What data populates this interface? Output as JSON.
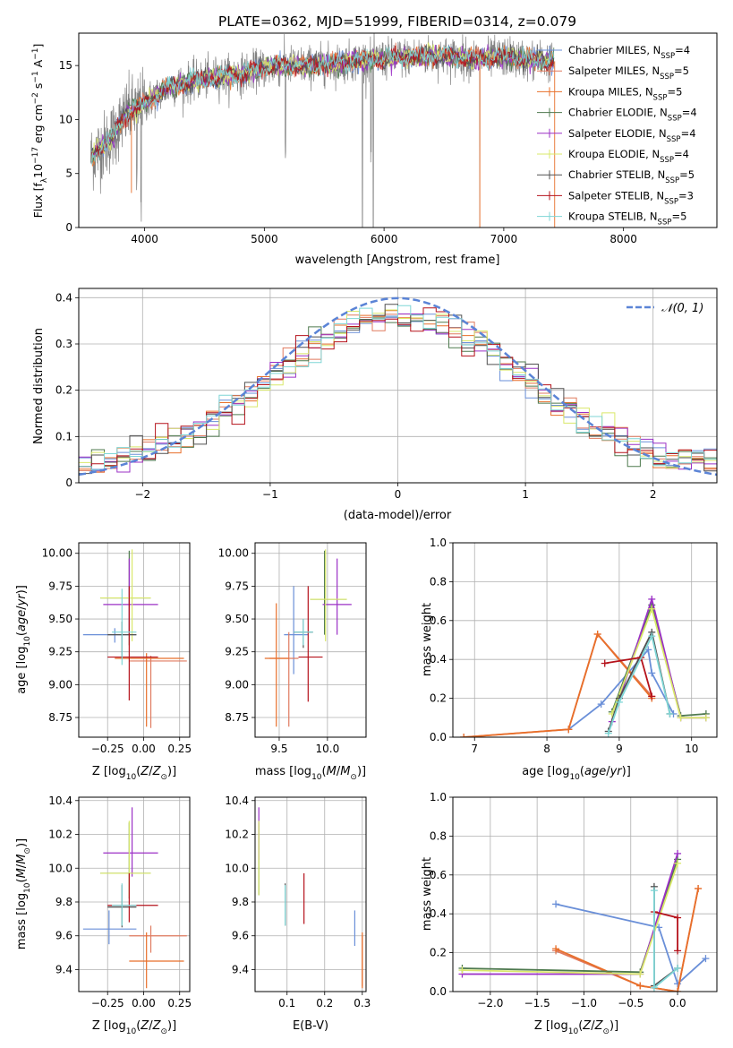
{
  "figure": {
    "title": "PLATE=0362, MJD=51999, FIBERID=0314, z=0.079"
  },
  "colors": {
    "models": [
      "#6a8fd8",
      "#e07a5f",
      "#e86f2a",
      "#4f7a4f",
      "#9b30c6",
      "#d9e86a",
      "#505050",
      "#b5121b",
      "#7fd6d6"
    ],
    "gauss": "#5b84d6",
    "data_spectrum": "#808080",
    "grid": "#b0b0b0"
  },
  "chart_data": [
    {
      "id": "spectrum",
      "type": "line",
      "title": "PLATE=0362, MJD=51999, FIBERID=0314, z=0.079",
      "xlabel": "wavelength [Angstrom, rest frame]",
      "ylabel": "Flux [f_λ10^-17 erg cm^-2 s^-1 A^-1]",
      "xlim": [
        3450,
        8780
      ],
      "ylim": [
        0,
        18
      ],
      "xticks": [
        4000,
        5000,
        6000,
        7000,
        8000
      ],
      "yticks": [
        0,
        5,
        10,
        15
      ],
      "grid": false,
      "legend_position": "top-right",
      "continuum": {
        "x": [
          3550,
          3700,
          3850,
          4000,
          4200,
          4400,
          4600,
          4800,
          5000,
          5200,
          5400,
          5600,
          5800,
          6000,
          6200,
          6400,
          6600,
          6800,
          7000,
          7200,
          7400
        ],
        "y": [
          6.5,
          8.0,
          10.5,
          11.5,
          13.0,
          13.5,
          14.0,
          14.2,
          14.8,
          15.0,
          15.0,
          15.2,
          15.5,
          15.6,
          15.8,
          15.9,
          15.8,
          15.6,
          15.8,
          15.5,
          15.4
        ]
      },
      "series": [
        {
          "name": "Chabrier MILES, N_SSP=4",
          "label_main": "Chabrier MILES, N",
          "label_sub": "SSP",
          "label_tail": "=4",
          "color_index": 0
        },
        {
          "name": "Salpeter MILES, N_SSP=5",
          "label_main": "Salpeter MILES, N",
          "label_sub": "SSP",
          "label_tail": "=5",
          "color_index": 1
        },
        {
          "name": "Kroupa MILES, N_SSP=5",
          "label_main": "Kroupa MILES, N",
          "label_sub": "SSP",
          "label_tail": "=5",
          "color_index": 2
        },
        {
          "name": "Chabrier ELODIE, N_SSP=4",
          "label_main": "Chabrier ELODIE, N",
          "label_sub": "SSP",
          "label_tail": "=4",
          "color_index": 3
        },
        {
          "name": "Salpeter ELODIE, N_SSP=4",
          "label_main": "Salpeter ELODIE, N",
          "label_sub": "SSP",
          "label_tail": "=4",
          "color_index": 4
        },
        {
          "name": "Kroupa ELODIE, N_SSP=4",
          "label_main": "Kroupa ELODIE, N",
          "label_sub": "SSP",
          "label_tail": "=4",
          "color_index": 5
        },
        {
          "name": "Chabrier STELIB, N_SSP=5",
          "label_main": "Chabrier STELIB, N",
          "label_sub": "SSP",
          "label_tail": "=5",
          "color_index": 6
        },
        {
          "name": "Salpeter STELIB, N_SSP=3",
          "label_main": "Salpeter STELIB, N",
          "label_sub": "SSP",
          "label_tail": "=3",
          "color_index": 7
        },
        {
          "name": "Kroupa STELIB, N_SSP=5",
          "label_main": "Kroupa STELIB, N",
          "label_sub": "SSP",
          "label_tail": "=5",
          "color_index": 8
        }
      ]
    },
    {
      "id": "residuals",
      "type": "histogram",
      "xlabel": "(data-model)/error",
      "ylabel": "Normed distribution",
      "xlim": [
        -2.5,
        2.5
      ],
      "ylim": [
        0,
        0.42
      ],
      "xticks": [
        -2,
        -1,
        0,
        1,
        2
      ],
      "yticks": [
        0.0,
        0.1,
        0.2,
        0.3,
        0.4
      ],
      "grid": true,
      "legend_position": "top-right",
      "legend_label": "𝒩(0, 1)",
      "bin_width": 0.1
    },
    {
      "id": "age_vs_Z",
      "type": "errorbar",
      "xlabel": "Z [log10(Z/Z⊙)]",
      "ylabel": "age [log10(age/yr)]",
      "xlim": [
        -0.45,
        0.32
      ],
      "ylim": [
        8.6,
        10.08
      ],
      "xticks": [
        -0.25,
        0.0,
        0.25
      ],
      "xticklabels": [
        "−0.25",
        "0.00",
        "0.25"
      ],
      "yticks": [
        8.75,
        9.0,
        9.25,
        9.5,
        9.75,
        10.0
      ],
      "yticklabels": [
        "8.75",
        "9.00",
        "9.25",
        "9.50",
        "9.75",
        "10.00"
      ],
      "grid": true,
      "points": [
        {
          "c": 0,
          "x": -0.2,
          "y": 9.38,
          "xe": [
            -0.42,
            -0.05
          ],
          "ye": [
            9.32,
            9.43
          ]
        },
        {
          "c": 1,
          "x": 0.05,
          "y": 9.18,
          "xe": [
            -0.1,
            0.3
          ],
          "ye": [
            8.67,
            9.22
          ]
        },
        {
          "c": 2,
          "x": 0.02,
          "y": 9.2,
          "xe": [
            -0.2,
            0.28
          ],
          "ye": [
            8.68,
            9.24
          ]
        },
        {
          "c": 3,
          "x": -0.1,
          "y": 9.66,
          "xe": [
            -0.3,
            0.05
          ],
          "ye": [
            9.3,
            10.02
          ]
        },
        {
          "c": 4,
          "x": -0.1,
          "y": 9.61,
          "xe": [
            -0.28,
            0.1
          ],
          "ye": [
            9.38,
            9.96
          ]
        },
        {
          "c": 5,
          "x": -0.08,
          "y": 9.66,
          "xe": [
            -0.3,
            0.05
          ],
          "ye": [
            9.33,
            10.03
          ]
        },
        {
          "c": 6,
          "x": -0.15,
          "y": 9.38,
          "xe": [
            -0.25,
            -0.05
          ],
          "ye": [
            9.2,
            9.48
          ]
        },
        {
          "c": 7,
          "x": -0.1,
          "y": 9.21,
          "xe": [
            -0.25,
            0.1
          ],
          "ye": [
            8.88,
            9.75
          ]
        },
        {
          "c": 8,
          "x": -0.15,
          "y": 9.4,
          "xe": [
            -0.22,
            -0.05
          ],
          "ye": [
            9.15,
            9.73
          ]
        }
      ]
    },
    {
      "id": "age_vs_mass",
      "type": "errorbar",
      "xlabel": "mass [log10(M/M⊙)]",
      "ylabel": "",
      "xlim": [
        9.25,
        10.4
      ],
      "ylim": [
        8.6,
        10.08
      ],
      "xticks": [
        9.5,
        10.0
      ],
      "xticklabels": [
        "9.5",
        "10.0"
      ],
      "yticks": [
        8.75,
        9.0,
        9.25,
        9.5,
        9.75,
        10.0
      ],
      "yticklabels": [
        "8.75",
        "9.00",
        "9.25",
        "9.50",
        "9.75",
        "10.00"
      ],
      "grid": true,
      "points": [
        {
          "c": 0,
          "x": 9.65,
          "y": 9.38,
          "xe": [
            9.55,
            9.8
          ],
          "ye": [
            9.08,
            9.75
          ]
        },
        {
          "c": 1,
          "x": 9.6,
          "y": 9.2,
          "xe": [
            9.4,
            9.7
          ],
          "ye": [
            8.68,
            9.4
          ]
        },
        {
          "c": 2,
          "x": 9.47,
          "y": 9.2,
          "xe": [
            9.35,
            9.6
          ],
          "ye": [
            8.68,
            9.62
          ]
        },
        {
          "c": 3,
          "x": 9.97,
          "y": 9.65,
          "xe": [
            9.82,
            10.2
          ],
          "ye": [
            9.38,
            10.02
          ]
        },
        {
          "c": 4,
          "x": 10.1,
          "y": 9.61,
          "xe": [
            9.95,
            10.25
          ],
          "ye": [
            9.38,
            9.96
          ]
        },
        {
          "c": 5,
          "x": 9.98,
          "y": 9.65,
          "xe": [
            9.82,
            10.2
          ],
          "ye": [
            9.33,
            10.03
          ]
        },
        {
          "c": 6,
          "x": 9.75,
          "y": 9.4,
          "xe": [
            9.65,
            9.85
          ],
          "ye": [
            9.28,
            9.5
          ]
        },
        {
          "c": 7,
          "x": 9.8,
          "y": 9.21,
          "xe": [
            9.7,
            9.95
          ],
          "ye": [
            8.87,
            9.75
          ]
        },
        {
          "c": 8,
          "x": 9.75,
          "y": 9.4,
          "xe": [
            9.65,
            9.85
          ],
          "ye": [
            9.3,
            9.5
          ]
        }
      ]
    },
    {
      "id": "mass_weight_vs_age",
      "type": "line",
      "xlabel": "age [log10(age/yr)]",
      "ylabel": "mass weight",
      "xlim": [
        6.7,
        10.35
      ],
      "ylim": [
        0,
        1.0
      ],
      "xticks": [
        7,
        8,
        9,
        10
      ],
      "xticklabels": [
        "7",
        "8",
        "9",
        "10"
      ],
      "yticks": [
        0.0,
        0.2,
        0.4,
        0.6,
        0.8,
        1.0
      ],
      "yticklabels": [
        "0.0",
        "0.2",
        "0.4",
        "0.6",
        "0.8",
        "1.0"
      ],
      "grid": true,
      "series": [
        {
          "c": 0,
          "x": [
            8.3,
            8.75,
            9.4,
            9.45,
            9.75
          ],
          "y": [
            0.04,
            0.17,
            0.45,
            0.33,
            0.12
          ]
        },
        {
          "c": 1,
          "x": [
            6.85,
            8.3,
            8.7,
            9.45
          ],
          "y": [
            0.0,
            0.04,
            0.53,
            0.21
          ]
        },
        {
          "c": 2,
          "x": [
            6.85,
            8.3,
            8.7,
            9.45
          ],
          "y": [
            0.0,
            0.04,
            0.53,
            0.2
          ]
        },
        {
          "c": 3,
          "x": [
            8.9,
            9.45,
            9.85,
            10.2
          ],
          "y": [
            0.13,
            0.68,
            0.11,
            0.12
          ]
        },
        {
          "c": 4,
          "x": [
            8.9,
            9.45,
            9.85,
            10.2
          ],
          "y": [
            0.08,
            0.71,
            0.1,
            0.1
          ]
        },
        {
          "c": 5,
          "x": [
            8.9,
            9.45,
            9.85,
            10.2
          ],
          "y": [
            0.12,
            0.66,
            0.1,
            0.1
          ]
        },
        {
          "c": 6,
          "x": [
            8.85,
            9.0,
            9.45,
            9.7
          ],
          "y": [
            0.03,
            0.2,
            0.54,
            0.12
          ]
        },
        {
          "c": 7,
          "x": [
            8.8,
            9.3,
            9.45
          ],
          "y": [
            0.38,
            0.41,
            0.21
          ]
        },
        {
          "c": 8,
          "x": [
            8.85,
            9.0,
            9.45,
            9.7
          ],
          "y": [
            0.02,
            0.18,
            0.52,
            0.12
          ]
        }
      ]
    },
    {
      "id": "mass_vs_Z",
      "type": "errorbar",
      "xlabel": "Z [log10(Z/Z⊙)]",
      "ylabel": "mass [log10(M/M⊙)]",
      "xlim": [
        -0.45,
        0.32
      ],
      "ylim": [
        9.27,
        10.42
      ],
      "xticks": [
        -0.25,
        0.0,
        0.25
      ],
      "xticklabels": [
        "−0.25",
        "0.00",
        "0.25"
      ],
      "yticks": [
        9.4,
        9.6,
        9.8,
        10.0,
        10.2,
        10.4
      ],
      "yticklabels": [
        "9.4",
        "9.6",
        "9.8",
        "10.0",
        "10.2",
        "10.4"
      ],
      "grid": true,
      "points": [
        {
          "c": 0,
          "x": -0.24,
          "y": 9.64,
          "xe": [
            -0.42,
            -0.05
          ],
          "ye": [
            9.55,
            9.75
          ]
        },
        {
          "c": 1,
          "x": 0.05,
          "y": 9.6,
          "xe": [
            -0.1,
            0.3
          ],
          "ye": [
            9.5,
            9.66
          ]
        },
        {
          "c": 2,
          "x": 0.02,
          "y": 9.45,
          "xe": [
            -0.1,
            0.28
          ],
          "ye": [
            9.29,
            9.62
          ]
        },
        {
          "c": 3,
          "x": -0.1,
          "y": 9.97,
          "xe": [
            -0.3,
            0.05
          ],
          "ye": [
            9.82,
            10.27
          ]
        },
        {
          "c": 4,
          "x": -0.08,
          "y": 10.09,
          "xe": [
            -0.28,
            0.1
          ],
          "ye": [
            9.95,
            10.36
          ]
        },
        {
          "c": 5,
          "x": -0.1,
          "y": 9.97,
          "xe": [
            -0.3,
            0.05
          ],
          "ye": [
            9.83,
            10.28
          ]
        },
        {
          "c": 6,
          "x": -0.15,
          "y": 9.77,
          "xe": [
            -0.25,
            -0.05
          ],
          "ye": [
            9.65,
            9.9
          ]
        },
        {
          "c": 7,
          "x": -0.1,
          "y": 9.78,
          "xe": [
            -0.25,
            0.1
          ],
          "ye": [
            9.68,
            9.97
          ]
        },
        {
          "c": 8,
          "x": -0.15,
          "y": 9.78,
          "xe": [
            -0.22,
            -0.05
          ],
          "ye": [
            9.66,
            9.91
          ]
        }
      ]
    },
    {
      "id": "mass_vs_EBV",
      "type": "errorbar",
      "xlabel": "E(B-V)",
      "ylabel": "",
      "xlim": [
        0.015,
        0.31
      ],
      "ylim": [
        9.27,
        10.42
      ],
      "xticks": [
        0.1,
        0.2,
        0.3
      ],
      "xticklabels": [
        "0.1",
        "0.2",
        "0.3"
      ],
      "yticks": [
        9.4,
        9.6,
        9.8,
        10.0,
        10.2,
        10.4
      ],
      "yticklabels": [
        "9.4",
        "9.6",
        "9.8",
        "10.0",
        "10.2",
        "10.4"
      ],
      "grid": true,
      "points": [
        {
          "c": 0,
          "x": 0.28,
          "y": 9.64,
          "ye": [
            9.54,
            9.75
          ]
        },
        {
          "c": 1,
          "x": 0.3,
          "y": 9.45,
          "ye": [
            9.3,
            9.6
          ]
        },
        {
          "c": 2,
          "x": 0.3,
          "y": 9.45,
          "ye": [
            9.29,
            9.62
          ]
        },
        {
          "c": 3,
          "x": 0.025,
          "y": 10.0,
          "ye": [
            9.84,
            10.27
          ]
        },
        {
          "c": 4,
          "x": 0.025,
          "y": 10.2,
          "ye": [
            10.05,
            10.36
          ]
        },
        {
          "c": 5,
          "x": 0.025,
          "y": 10.0,
          "ye": [
            9.84,
            10.28
          ]
        },
        {
          "c": 6,
          "x": 0.095,
          "y": 9.8,
          "ye": [
            9.66,
            9.91
          ]
        },
        {
          "c": 7,
          "x": 0.145,
          "y": 9.82,
          "ye": [
            9.67,
            9.97
          ]
        },
        {
          "c": 8,
          "x": 0.095,
          "y": 9.78,
          "ye": [
            9.66,
            9.9
          ]
        }
      ]
    },
    {
      "id": "mass_weight_vs_Z",
      "type": "line",
      "xlabel": "Z [log10(Z/Z⊙)]",
      "ylabel": "mass weight",
      "xlim": [
        -2.4,
        0.42
      ],
      "ylim": [
        0,
        1.0
      ],
      "xticks": [
        -2.0,
        -1.5,
        -1.0,
        -0.5,
        0.0
      ],
      "xticklabels": [
        "−2.0",
        "−1.5",
        "−1.0",
        "−0.5",
        "0.0"
      ],
      "yticks": [
        0.0,
        0.2,
        0.4,
        0.6,
        0.8,
        1.0
      ],
      "yticklabels": [
        "0.0",
        "0.2",
        "0.4",
        "0.6",
        "0.8",
        "1.0"
      ],
      "grid": true,
      "series": [
        {
          "c": 0,
          "x": [
            -1.3,
            -0.2,
            0.0,
            0.3
          ],
          "y": [
            0.45,
            0.33,
            0.04,
            0.17
          ]
        },
        {
          "c": 1,
          "x": [
            -1.3,
            -0.4,
            0.0,
            0.22
          ],
          "y": [
            0.21,
            0.03,
            0.0,
            0.53
          ]
        },
        {
          "c": 2,
          "x": [
            -1.3,
            -0.4,
            0.0,
            0.22
          ],
          "y": [
            0.22,
            0.03,
            0.0,
            0.53
          ]
        },
        {
          "c": 3,
          "x": [
            -2.3,
            -0.4,
            0.0
          ],
          "y": [
            0.12,
            0.1,
            0.68
          ]
        },
        {
          "c": 4,
          "x": [
            -2.3,
            -0.4,
            0.0
          ],
          "y": [
            0.09,
            0.09,
            0.71
          ]
        },
        {
          "c": 5,
          "x": [
            -2.3,
            -0.4,
            0.0
          ],
          "y": [
            0.11,
            0.09,
            0.66
          ]
        },
        {
          "c": 6,
          "x": [
            -0.25,
            -0.25,
            0.0
          ],
          "y": [
            0.54,
            0.03,
            0.12
          ]
        },
        {
          "c": 7,
          "x": [
            -0.25,
            0.0,
            0.0
          ],
          "y": [
            0.41,
            0.38,
            0.21
          ]
        },
        {
          "c": 8,
          "x": [
            -0.25,
            -0.25,
            0.0
          ],
          "y": [
            0.52,
            0.02,
            0.12
          ]
        }
      ]
    }
  ]
}
